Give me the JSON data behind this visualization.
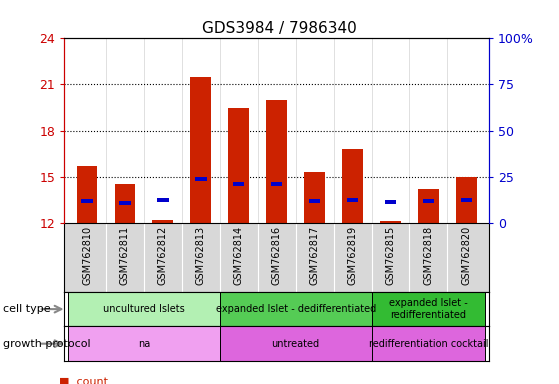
{
  "title": "GDS3984 / 7986340",
  "samples": [
    "GSM762810",
    "GSM762811",
    "GSM762812",
    "GSM762813",
    "GSM762814",
    "GSM762816",
    "GSM762817",
    "GSM762819",
    "GSM762815",
    "GSM762818",
    "GSM762820"
  ],
  "count_values": [
    15.7,
    14.5,
    12.2,
    21.5,
    19.5,
    20.0,
    15.3,
    16.8,
    12.1,
    14.2,
    15.0
  ],
  "percentile_values": [
    13.4,
    13.3,
    13.5,
    14.85,
    14.5,
    14.5,
    13.4,
    13.5,
    13.35,
    13.4,
    13.5
  ],
  "ylim": [
    12,
    24
  ],
  "y_left_ticks": [
    12,
    15,
    18,
    21,
    24
  ],
  "y_right_tick_labels": [
    "0",
    "25",
    "50",
    "75",
    "100%"
  ],
  "y_right_tick_vals": [
    12,
    15,
    18,
    21,
    24
  ],
  "dotted_lines": [
    15,
    18,
    21
  ],
  "cell_type_groups": [
    {
      "label": "uncultured Islets",
      "start": 0,
      "end": 4,
      "color": "#b3f0b3"
    },
    {
      "label": "expanded Islet - dedifferentiated",
      "start": 4,
      "end": 8,
      "color": "#55cc55"
    },
    {
      "label": "expanded Islet -\nredifferentiated",
      "start": 8,
      "end": 11,
      "color": "#33bb33"
    }
  ],
  "growth_protocol_groups": [
    {
      "label": "na",
      "start": 0,
      "end": 4,
      "color": "#f0a0f0"
    },
    {
      "label": "untreated",
      "start": 4,
      "end": 8,
      "color": "#dd66dd"
    },
    {
      "label": "redifferentiation cocktail",
      "start": 8,
      "end": 11,
      "color": "#dd66dd"
    }
  ],
  "bar_color": "#cc2200",
  "percentile_color": "#0000cc",
  "bar_width": 0.55,
  "pct_bar_width": 0.3,
  "pct_bar_height": 0.28,
  "xtick_bg_color": "#d8d8d8",
  "left_label_color": "#cc0000",
  "right_label_color": "#0000cc",
  "legend_square_size": 8,
  "title_fontsize": 11,
  "ytick_fontsize": 9,
  "xtick_fontsize": 7,
  "annotation_fontsize": 7,
  "left_labels_text": [
    "cell type",
    "growth protocol"
  ],
  "arrow_color": "#888888"
}
